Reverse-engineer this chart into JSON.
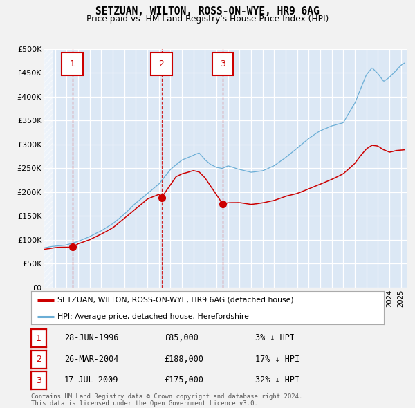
{
  "title": "SETZUAN, WILTON, ROSS-ON-WYE, HR9 6AG",
  "subtitle": "Price paid vs. HM Land Registry's House Price Index (HPI)",
  "legend_line1": "SETZUAN, WILTON, ROSS-ON-WYE, HR9 6AG (detached house)",
  "legend_line2": "HPI: Average price, detached house, Herefordshire",
  "hpi_color": "#6baed6",
  "price_color": "#cc0000",
  "plot_bg": "#dce8f5",
  "grid_color": "#ffffff",
  "vline_color": "#cc0000",
  "ylim": [
    0,
    500000
  ],
  "yticks": [
    0,
    50000,
    100000,
    150000,
    200000,
    250000,
    300000,
    350000,
    400000,
    450000,
    500000
  ],
  "ytick_labels": [
    "£0",
    "£50K",
    "£100K",
    "£150K",
    "£200K",
    "£250K",
    "£300K",
    "£350K",
    "£400K",
    "£450K",
    "£500K"
  ],
  "xmin": 1994.0,
  "xmax": 2025.5,
  "hatch_end": 1994.75,
  "transactions": [
    {
      "num": 1,
      "date": "28-JUN-1996",
      "x": 1996.49,
      "price": 85000,
      "pct": "3%",
      "dir": "↓"
    },
    {
      "num": 2,
      "date": "26-MAR-2004",
      "x": 2004.23,
      "price": 188000,
      "pct": "17%",
      "dir": "↓"
    },
    {
      "num": 3,
      "date": "17-JUL-2009",
      "x": 2009.54,
      "price": 175000,
      "pct": "32%",
      "dir": "↓"
    }
  ],
  "footer": "Contains HM Land Registry data © Crown copyright and database right 2024.\nThis data is licensed under the Open Government Licence v3.0.",
  "hpi_anchors_x": [
    1994.0,
    1995.0,
    1996.0,
    1997.0,
    1998.0,
    1999.0,
    2000.0,
    2001.0,
    2002.0,
    2003.0,
    2004.0,
    2005.0,
    2006.0,
    2007.0,
    2007.5,
    2008.0,
    2008.5,
    2009.0,
    2009.5,
    2010.0,
    2011.0,
    2012.0,
    2013.0,
    2014.0,
    2015.0,
    2016.0,
    2017.0,
    2018.0,
    2019.0,
    2020.0,
    2021.0,
    2021.5,
    2022.0,
    2022.5,
    2023.0,
    2023.5,
    2024.0,
    2025.0,
    2025.3
  ],
  "hpi_anchors_y": [
    83000,
    87000,
    90000,
    98000,
    108000,
    120000,
    135000,
    155000,
    178000,
    198000,
    218000,
    248000,
    268000,
    278000,
    282000,
    268000,
    258000,
    252000,
    250000,
    255000,
    248000,
    242000,
    245000,
    255000,
    272000,
    292000,
    312000,
    328000,
    338000,
    345000,
    385000,
    415000,
    445000,
    460000,
    448000,
    432000,
    440000,
    465000,
    470000
  ],
  "price_anchors_x": [
    1994.0,
    1995.0,
    1996.49,
    1997.0,
    1998.0,
    1999.0,
    2000.0,
    2001.0,
    2002.0,
    2003.0,
    2004.0,
    2004.23,
    2005.0,
    2005.5,
    2006.0,
    2007.0,
    2007.5,
    2008.0,
    2009.0,
    2009.54,
    2010.0,
    2011.0,
    2012.0,
    2013.0,
    2014.0,
    2015.0,
    2016.0,
    2017.0,
    2018.0,
    2019.0,
    2020.0,
    2021.0,
    2021.5,
    2022.0,
    2022.5,
    2023.0,
    2023.5,
    2024.0,
    2024.5,
    2025.3
  ],
  "price_anchors_y": [
    80000,
    84000,
    85000,
    92000,
    100000,
    112000,
    125000,
    145000,
    165000,
    185000,
    195000,
    188000,
    215000,
    232000,
    238000,
    245000,
    242000,
    230000,
    195000,
    175000,
    178000,
    178000,
    175000,
    178000,
    183000,
    192000,
    198000,
    208000,
    218000,
    228000,
    240000,
    262000,
    278000,
    292000,
    300000,
    298000,
    290000,
    285000,
    288000,
    290000
  ]
}
